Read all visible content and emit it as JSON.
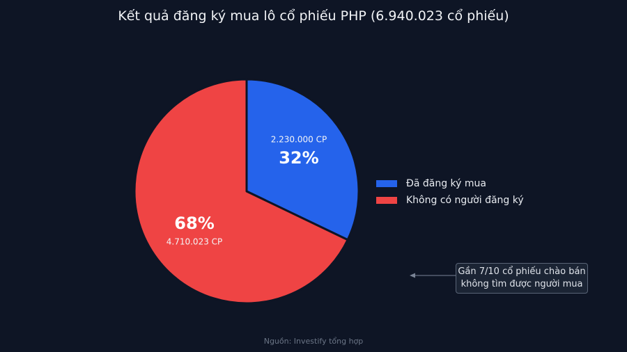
{
  "title": "Kết quả đăng ký mua lô cổ phiếu PHP (6.940.023 cổ phiếu)",
  "chart_data": {
    "type": "pie",
    "title": "Kết quả đăng ký mua lô cổ phiếu PHP (6.940.023 cổ phiếu)",
    "categories": [
      "Đã đăng ký mua",
      "Không có người đăng ký"
    ],
    "values": [
      2230000,
      4710023
    ],
    "percent_labels": [
      "32%",
      "68%"
    ],
    "value_labels": [
      "2.230.000 CP",
      "4.710.023 CP"
    ],
    "colors": [
      "#2563eb",
      "#ef4444"
    ],
    "start_angle": "top (12 o'clock), clockwise",
    "legend_position": "right"
  },
  "annotation": {
    "lines": [
      "Gần 7/10 cổ phiếu chào bán",
      "không tìm được người mua"
    ]
  },
  "source": "Nguồn: Investify tổng hợp"
}
